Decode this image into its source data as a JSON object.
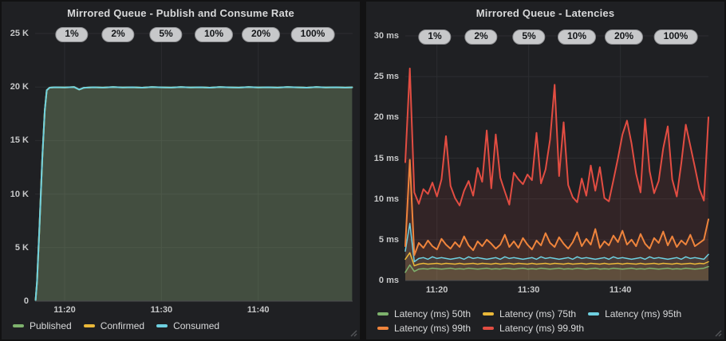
{
  "colors": {
    "page_bg": "#121213",
    "panel_bg": "#1f2023",
    "grid": "#2c2d31",
    "axis_line": "#4b4c4f",
    "tick_text": "#c7c8c9",
    "title_text": "#d8d9da",
    "pill_bg": "#c7c8ca",
    "pill_text": "#141619",
    "series_green": "#7EB26D",
    "series_yellow": "#EAB839",
    "series_cyan": "#6ED0E0",
    "series_orange": "#EF843C",
    "series_red": "#E24D42"
  },
  "panels": [
    {
      "title": "Mirrored Queue - Publish and Consume Rate",
      "percent_pills": [
        "1%",
        "2%",
        "5%",
        "10%",
        "20%",
        "100%"
      ],
      "legend_rows": [
        [
          {
            "label": "Published",
            "color": "#7EB26D"
          },
          {
            "label": "Confirmed",
            "color": "#EAB839"
          },
          {
            "label": "Consumed",
            "color": "#6ED0E0"
          }
        ]
      ]
    },
    {
      "title": "Mirrored Queue - Latencies",
      "percent_pills": [
        "1%",
        "2%",
        "5%",
        "10%",
        "20%",
        "100%"
      ],
      "legend_rows": [
        [
          {
            "label": "Latency (ms) 50th",
            "color": "#7EB26D"
          },
          {
            "label": "Latency (ms) 75th",
            "color": "#EAB839"
          },
          {
            "label": "Latency (ms) 95th",
            "color": "#6ED0E0"
          }
        ],
        [
          {
            "label": "Latency (ms) 99th",
            "color": "#EF843C"
          },
          {
            "label": "Latency (ms) 99.9th",
            "color": "#E24D42"
          }
        ]
      ]
    }
  ],
  "chart_data": [
    {
      "type": "area",
      "title": "Mirrored Queue - Publish and Consume Rate",
      "x_unit": "minutes after 11:00",
      "xlim": [
        16.95,
        49.75
      ],
      "ylim": [
        0,
        25000
      ],
      "grid": true,
      "legend_position": "bottom",
      "fill_opacity": 0.11,
      "y_ticks": [
        {
          "v": 25000,
          "label": "25 K"
        },
        {
          "v": 20000,
          "label": "20 K"
        },
        {
          "v": 15000,
          "label": "15 K"
        },
        {
          "v": 10000,
          "label": "10 K"
        },
        {
          "v": 5000,
          "label": "5 K"
        },
        {
          "v": 0,
          "label": "0"
        }
      ],
      "x_ticks": [
        {
          "v": 20,
          "label": "11:20"
        },
        {
          "v": 30,
          "label": "11:30"
        },
        {
          "v": 40,
          "label": "11:40"
        }
      ],
      "x": [
        17.0,
        17.15,
        17.4,
        17.7,
        17.95,
        18.15,
        18.45,
        19,
        20,
        21,
        21.5,
        22,
        23,
        24,
        25,
        26,
        27,
        28,
        29,
        30,
        31,
        32,
        33,
        34,
        35,
        36,
        37,
        38,
        39,
        40,
        41,
        42,
        43,
        44,
        45,
        46,
        47,
        48,
        49,
        49.7
      ],
      "values_all_series": [
        100,
        1800,
        7000,
        13500,
        17800,
        19700,
        19940,
        19980,
        19960,
        19990,
        19760,
        19930,
        19980,
        19950,
        19990,
        19960,
        19980,
        19940,
        19990,
        19970,
        19950,
        19990,
        19960,
        19980,
        19940,
        19990,
        19970,
        19950,
        19990,
        19960,
        19980,
        19950,
        19990,
        19970,
        19940,
        19990,
        19960,
        19980,
        19950,
        19970
      ],
      "series": [
        {
          "name": "Published",
          "color": "#7EB26D"
        },
        {
          "name": "Confirmed",
          "color": "#EAB839"
        },
        {
          "name": "Consumed",
          "color": "#6ED0E0"
        }
      ]
    },
    {
      "type": "line",
      "title": "Mirrored Queue - Latencies",
      "x_unit": "minutes after 11:00",
      "xlim": [
        16.55,
        49.6
      ],
      "ylim": [
        0,
        30
      ],
      "grid": true,
      "legend_position": "bottom",
      "fill_opacity": 0.1,
      "x_start": 16.55,
      "x_end": 49.6,
      "y_ticks": [
        {
          "v": 30,
          "label": "30 ms"
        },
        {
          "v": 25,
          "label": "25 ms"
        },
        {
          "v": 20,
          "label": "20 ms"
        },
        {
          "v": 15,
          "label": "15 ms"
        },
        {
          "v": 10,
          "label": "10 ms"
        },
        {
          "v": 5,
          "label": "5 ms"
        },
        {
          "v": 0,
          "label": "0 ms"
        }
      ],
      "x_ticks": [
        {
          "v": 20,
          "label": "11:20"
        },
        {
          "v": 30,
          "label": "11:30"
        },
        {
          "v": 40,
          "label": "11:40"
        }
      ],
      "series": [
        {
          "name": "Latency (ms) 50th",
          "color": "#7EB26D",
          "width": 1.5,
          "values": [
            1,
            1.9,
            1.1,
            1.4,
            1.45,
            1.4,
            1.5,
            1.45,
            1.4,
            1.45,
            1.5,
            1.4,
            1.45,
            1.4,
            1.5,
            1.45,
            1.4,
            1.45,
            1.5,
            1.4,
            1.45,
            1.4,
            1.5,
            1.45,
            1.4,
            1.45,
            1.5,
            1.4,
            1.45,
            1.4,
            1.5,
            1.45,
            1.4,
            1.45,
            1.5,
            1.4,
            1.45,
            1.4,
            1.5,
            1.45,
            1.4,
            1.45,
            1.5,
            1.4,
            1.45,
            1.4,
            1.5,
            1.45,
            1.4,
            1.45,
            1.5,
            1.4,
            1.45,
            1.4,
            1.5,
            1.45,
            1.4,
            1.45,
            1.5,
            1.4,
            1.45,
            1.4,
            1.5,
            1.45,
            1.4,
            1.45,
            1.5,
            1.7
          ]
        },
        {
          "name": "Latency (ms) 75th",
          "color": "#EAB839",
          "width": 1.5,
          "values": [
            2.6,
            3.4,
            1.8,
            2,
            2.1,
            2,
            2.05,
            2.1,
            2,
            2.1,
            2.05,
            2,
            2.1,
            2,
            2.05,
            2.1,
            2,
            2.1,
            2.05,
            2,
            2.1,
            2,
            2.05,
            2.1,
            2,
            2.1,
            2.05,
            2,
            2.1,
            2,
            2.05,
            2.1,
            2,
            2.1,
            2.05,
            2,
            2.1,
            2,
            2.05,
            2.1,
            2,
            2.1,
            2.05,
            2,
            2.1,
            2,
            2.05,
            2.1,
            2,
            2.1,
            2.05,
            2,
            2.1,
            2,
            2.05,
            2.1,
            2,
            2.1,
            2.05,
            2,
            2.1,
            2,
            2.05,
            2.1,
            2,
            2.1,
            2.05,
            2.3
          ]
        },
        {
          "name": "Latency (ms) 95th",
          "color": "#6ED0E0",
          "width": 1.5,
          "values": [
            3.6,
            7,
            2.3,
            2.7,
            2.8,
            2.6,
            2.9,
            2.7,
            2.8,
            2.7,
            2.6,
            2.7,
            2.8,
            2.6,
            2.9,
            2.7,
            2.8,
            2.7,
            2.6,
            2.7,
            2.8,
            2.6,
            2.9,
            2.7,
            2.8,
            2.7,
            2.6,
            2.7,
            2.8,
            2.6,
            2.9,
            2.7,
            2.8,
            2.7,
            2.6,
            2.7,
            2.8,
            2.6,
            2.9,
            2.7,
            2.8,
            2.7,
            2.6,
            2.7,
            2.8,
            2.6,
            2.9,
            2.7,
            2.8,
            2.7,
            2.6,
            2.7,
            2.8,
            2.6,
            2.9,
            2.7,
            2.8,
            2.7,
            2.6,
            2.7,
            2.8,
            2.6,
            2.9,
            2.7,
            2.8,
            2.7,
            2.6,
            3.2
          ]
        },
        {
          "name": "Latency (ms) 99th",
          "color": "#EF843C",
          "width": 2,
          "values": [
            4.2,
            14.8,
            3.1,
            4.6,
            4,
            4.9,
            4.2,
            3.8,
            5.1,
            4.4,
            3.9,
            4.7,
            4.1,
            5.4,
            4.3,
            3.7,
            4.8,
            4.2,
            5,
            4.5,
            3.9,
            4.4,
            5.6,
            4.1,
            4.8,
            4,
            5.2,
            4.4,
            3.8,
            4.9,
            4.3,
            5.8,
            4.6,
            4.1,
            5.3,
            4.5,
            3.9,
            4.7,
            5.9,
            4.2,
            5.1,
            4.4,
            6.3,
            4,
            4.8,
            4.3,
            5.5,
            4.7,
            6.1,
            4.4,
            5,
            4.2,
            5.7,
            4.5,
            3.9,
            5.2,
            4.6,
            6,
            4.3,
            5.4,
            4.1,
            4.9,
            4.4,
            5.6,
            4.2,
            4.6,
            5,
            7.5
          ]
        },
        {
          "name": "Latency (ms) 99.9th",
          "color": "#E24D42",
          "width": 2,
          "values": [
            14.5,
            26,
            10.8,
            9.4,
            11.2,
            10.6,
            12,
            10.3,
            12.4,
            17.7,
            11.6,
            10.1,
            9.2,
            11,
            12.2,
            10.4,
            13.8,
            12.1,
            18.4,
            11.3,
            17.9,
            12.6,
            10.9,
            9.3,
            13.2,
            12.4,
            11.8,
            13,
            12.3,
            18.1,
            11.9,
            13.6,
            17.3,
            24,
            12.8,
            19.4,
            11.7,
            10.2,
            9.6,
            12.5,
            10.4,
            14.1,
            11,
            13.9,
            10.1,
            9.7,
            12.3,
            15,
            17.9,
            19.6,
            16.8,
            13.1,
            10.8,
            19.8,
            13.4,
            10.7,
            12.2,
            16.2,
            18.9,
            12.4,
            10.3,
            14.4,
            19.1,
            16.5,
            13.9,
            11.2,
            9.8,
            20
          ]
        }
      ]
    }
  ]
}
